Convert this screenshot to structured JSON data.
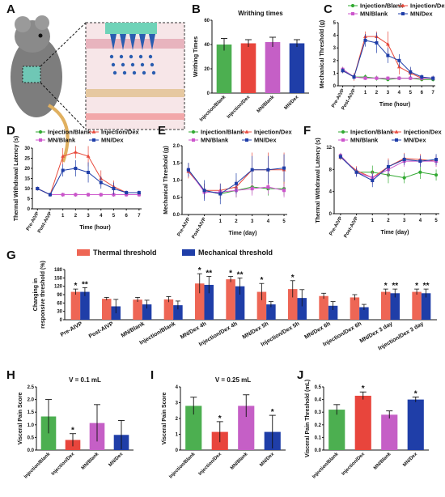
{
  "panel_letters": [
    "A",
    "B",
    "C",
    "D",
    "E",
    "F",
    "G",
    "H",
    "I",
    "J"
  ],
  "colors": {
    "green": "#4caf50",
    "red": "#e8453c",
    "pink": "#c55fc6",
    "blue": "#1f3ea8",
    "ginj_blank": "#33aa33",
    "ginj_dex": "#e84a3c",
    "gmn_blank": "#cc55cc",
    "gmn_dex": "#1f3ea8",
    "salmon": "#ee6655",
    "navy": "#1f3ea8"
  },
  "chart_data": [
    {
      "panel": "B",
      "type": "bar",
      "title": "Writhing times",
      "ylabel": "Writhing Times",
      "ylim": [
        0,
        60
      ],
      "yticks": [
        0,
        20,
        40,
        60
      ],
      "categories": [
        "Injection/Blank",
        "Injection/Dex",
        "MN/Blank",
        "MN/Dex"
      ],
      "values": [
        40,
        41,
        42,
        41
      ],
      "errors": [
        5,
        3,
        4,
        3
      ],
      "colors": [
        "#4caf50",
        "#e8453c",
        "#c55fc6",
        "#1f3ea8"
      ]
    },
    {
      "panel": "C",
      "type": "line",
      "xlabel": "Time (hour)",
      "ylabel": "Mechanical Threshold (g)",
      "ylim": [
        0,
        5
      ],
      "yticks": [
        0,
        1,
        2,
        3,
        4,
        5
      ],
      "x": [
        "Pre-AIVP",
        "Post-AIVP",
        "1",
        "2",
        "3",
        "4",
        "5",
        "6",
        "7"
      ],
      "series": [
        {
          "name": "Injection/Blank",
          "color": "#33aa33",
          "marker": "circle",
          "values": [
            1.3,
            0.7,
            0.7,
            0.6,
            0.5,
            0.6,
            0.6,
            0.5,
            0.5
          ],
          "errors": [
            0.2,
            0.2,
            0.2,
            0.2,
            0.15,
            0.15,
            0.15,
            0.15,
            0.15
          ]
        },
        {
          "name": "Injection/Dex",
          "color": "#e84a3c",
          "marker": "triangle",
          "values": [
            1.2,
            0.7,
            3.9,
            3.9,
            3.3,
            1.5,
            1.0,
            0.6,
            0.6
          ],
          "errors": [
            0.2,
            0.3,
            0.4,
            0.4,
            1.0,
            0.6,
            0.4,
            0.2,
            0.2
          ]
        },
        {
          "name": "MN/Blank",
          "color": "#cc55cc",
          "marker": "square",
          "values": [
            1.3,
            0.7,
            0.6,
            0.6,
            0.6,
            0.6,
            0.6,
            0.6,
            0.6
          ],
          "errors": [
            0.2,
            0.2,
            0.15,
            0.15,
            0.15,
            0.15,
            0.15,
            0.15,
            0.15
          ]
        },
        {
          "name": "MN/Dex",
          "color": "#1f3ea8",
          "marker": "square",
          "values": [
            1.2,
            0.7,
            3.6,
            3.4,
            2.4,
            2.0,
            1.1,
            0.7,
            0.6
          ],
          "errors": [
            0.2,
            0.2,
            0.5,
            0.8,
            0.6,
            0.5,
            0.4,
            0.2,
            0.2
          ]
        }
      ]
    },
    {
      "panel": "D",
      "type": "line",
      "xlabel": "Time (hour)",
      "ylabel": "Thermal Withdrawal Latency (s)",
      "ylim": [
        0,
        30
      ],
      "yticks": [
        0,
        5,
        10,
        15,
        20,
        25,
        30
      ],
      "x": [
        "Pre-AIVP",
        "Post-AIVP",
        "1",
        "2",
        "3",
        "4",
        "5",
        "6",
        "7"
      ],
      "series": [
        {
          "name": "Injection/Blank",
          "color": "#33aa33",
          "marker": "circle",
          "values": [
            10,
            7,
            7,
            7,
            7,
            7,
            7,
            7,
            7
          ],
          "errors": [
            1,
            1,
            1,
            1,
            1,
            1,
            1,
            1,
            1
          ]
        },
        {
          "name": "Injection/Dex",
          "color": "#e84a3c",
          "marker": "triangle",
          "values": [
            10,
            7,
            26,
            28,
            26,
            15,
            11,
            8,
            8
          ],
          "errors": [
            1,
            1,
            4,
            3,
            5,
            4,
            3,
            1,
            1
          ]
        },
        {
          "name": "MN/Blank",
          "color": "#cc55cc",
          "marker": "square",
          "values": [
            10,
            7,
            7,
            7,
            7,
            7,
            7,
            7,
            7
          ],
          "errors": [
            1,
            1,
            1,
            1,
            1,
            1,
            1,
            1,
            1
          ]
        },
        {
          "name": "MN/Dex",
          "color": "#1f3ea8",
          "marker": "square",
          "values": [
            10,
            7,
            19,
            20,
            18,
            13,
            10,
            8,
            8
          ],
          "errors": [
            1,
            1,
            3,
            4,
            5,
            3,
            3,
            1,
            1
          ]
        }
      ]
    },
    {
      "panel": "E",
      "type": "line",
      "xlabel": "Time (day)",
      "ylabel": "Mechanical Threshold (g)",
      "ylim": [
        0.0,
        2.0
      ],
      "yticks": [
        "0.0",
        "0.5",
        "1.0",
        "1.5",
        "2.0"
      ],
      "x": [
        "Pre-AIVP",
        "Post-AIVP",
        "1",
        "2",
        "3",
        "4",
        "5"
      ],
      "series": [
        {
          "name": "Injection/Blank",
          "color": "#33aa33",
          "marker": "circle",
          "values": [
            1.3,
            0.7,
            0.6,
            0.7,
            0.8,
            0.75,
            0.75
          ],
          "errors": [
            0.2,
            0.2,
            0.15,
            0.2,
            0.2,
            0.2,
            0.2
          ]
        },
        {
          "name": "Injection/Dex",
          "color": "#e84a3c",
          "marker": "triangle",
          "values": [
            1.25,
            0.7,
            0.7,
            0.8,
            1.3,
            1.3,
            1.3
          ],
          "errors": [
            0.2,
            0.2,
            0.2,
            0.2,
            0.5,
            0.5,
            0.5
          ]
        },
        {
          "name": "MN/Blank",
          "color": "#cc55cc",
          "marker": "square",
          "values": [
            1.3,
            0.65,
            0.65,
            0.7,
            0.75,
            0.8,
            0.7
          ],
          "errors": [
            0.2,
            0.2,
            0.2,
            0.2,
            0.2,
            0.2,
            0.2
          ]
        },
        {
          "name": "MN/Dex",
          "color": "#1f3ea8",
          "marker": "square",
          "values": [
            1.3,
            0.7,
            0.6,
            0.9,
            1.3,
            1.3,
            1.35
          ],
          "errors": [
            0.2,
            0.3,
            0.3,
            0.3,
            0.4,
            0.4,
            0.4
          ]
        }
      ]
    },
    {
      "panel": "F",
      "type": "line",
      "xlabel": "Time (day)",
      "ylabel": "Thermal Withdrawal Latency (s)",
      "ylim": [
        0,
        12
      ],
      "yticks": [
        0,
        4,
        8,
        12
      ],
      "x": [
        "Pre-AIVP",
        "Post-AIVP",
        "1",
        "2",
        "3",
        "4",
        "5"
      ],
      "series": [
        {
          "name": "Injection/Blank",
          "color": "#33aa33",
          "marker": "circle",
          "values": [
            10.5,
            7.5,
            7.5,
            7,
            6.5,
            7.5,
            7
          ],
          "errors": [
            0.5,
            0.8,
            1.2,
            1.5,
            1,
            1.2,
            1
          ]
        },
        {
          "name": "Injection/Dex",
          "color": "#e84a3c",
          "marker": "triangle",
          "values": [
            10.2,
            7.8,
            6.5,
            8.5,
            10,
            9.8,
            9.5
          ],
          "errors": [
            0.5,
            0.8,
            1.2,
            1.5,
            1,
            1,
            1
          ]
        },
        {
          "name": "MN/Blank",
          "color": "#cc55cc",
          "marker": "square",
          "values": [
            10.5,
            7.5,
            6.5,
            8,
            9.5,
            9.5,
            9.5
          ],
          "errors": [
            0.5,
            0.8,
            1,
            1.2,
            1,
            1,
            1
          ]
        },
        {
          "name": "MN/Dex",
          "color": "#1f3ea8",
          "marker": "square",
          "values": [
            10.3,
            7.5,
            6,
            8.5,
            9.8,
            9.5,
            9.8
          ],
          "errors": [
            0.5,
            0.8,
            1.2,
            1.2,
            1,
            1,
            1
          ]
        }
      ]
    },
    {
      "panel": "G",
      "type": "bar",
      "ylabel": "Changing in responsive threshold (%)",
      "ylim": [
        0,
        180
      ],
      "yticks": [
        0,
        30,
        60,
        90,
        120,
        150,
        180
      ],
      "categories": [
        "Pre-AIVP",
        "Post-AIVP",
        "MN/Blank",
        "Injection/Blank",
        "MN/Dex 4h",
        "Injection/Dex 4h",
        "MN/Dex 5h",
        "Injection/Dex 5h",
        "MN/Dex 6h",
        "Injection/Dex 6h",
        "MN/Dex 3 day",
        "Injection/Dex 3 day"
      ],
      "series": [
        {
          "name": "Thermal threshold",
          "color": "#ee6655",
          "values": [
            100,
            75,
            72,
            73,
            130,
            145,
            100,
            110,
            85,
            80,
            100,
            100
          ],
          "errors": [
            10,
            5,
            8,
            10,
            35,
            10,
            30,
            30,
            10,
            10,
            10,
            10
          ],
          "stars": [
            "*",
            "",
            "",
            "",
            "*",
            "*",
            "*",
            "*",
            "",
            "",
            "*",
            "*"
          ]
        },
        {
          "name": "Mechanical threshold",
          "color": "#1f3ea8",
          "values": [
            100,
            48,
            55,
            52,
            125,
            120,
            55,
            78,
            50,
            45,
            95,
            95
          ],
          "errors": [
            15,
            25,
            15,
            15,
            30,
            30,
            10,
            30,
            15,
            10,
            15,
            15
          ],
          "stars": [
            "**",
            "",
            "",
            "",
            "**",
            "**",
            "",
            "",
            "",
            "",
            "**",
            "**"
          ]
        }
      ]
    },
    {
      "panel": "H",
      "type": "bar",
      "title": "V = 0.1 mL",
      "ylabel": "Visceral Pain Score",
      "ylim": [
        0,
        2.5
      ],
      "yticks": [
        "0.0",
        "0.5",
        "1.0",
        "1.5",
        "2.0",
        "2.5"
      ],
      "categories": [
        "Injection/Blank",
        "Injection/Dex",
        "MN/Blank",
        "MN/Dex"
      ],
      "values": [
        1.33,
        0.4,
        1.07,
        0.6
      ],
      "errors": [
        0.67,
        0.25,
        0.73,
        0.57
      ],
      "colors": [
        "#4caf50",
        "#e8453c",
        "#c55fc6",
        "#1f3ea8"
      ],
      "stars": [
        "",
        "*",
        "",
        ""
      ]
    },
    {
      "panel": "I",
      "type": "bar",
      "title": "V = 0.25 mL",
      "ylabel": "Visceral Pain Score",
      "ylim": [
        0,
        4
      ],
      "yticks": [
        0,
        1,
        2,
        3,
        4
      ],
      "categories": [
        "Injection/Blank",
        "Injection/Dex",
        "MN/Blank",
        "MN/Dex"
      ],
      "values": [
        2.8,
        1.15,
        2.8,
        1.15
      ],
      "errors": [
        0.55,
        0.65,
        0.7,
        1.05
      ],
      "colors": [
        "#4caf50",
        "#e8453c",
        "#c55fc6",
        "#1f3ea8"
      ],
      "stars": [
        "",
        "*",
        "",
        "*"
      ]
    },
    {
      "panel": "J",
      "type": "bar",
      "ylabel": "Visceral Pain Threshold (mL)",
      "ylim": [
        0,
        0.5
      ],
      "yticks": [
        "0.0",
        "0.1",
        "0.2",
        "0.3",
        "0.4",
        "0.5"
      ],
      "categories": [
        "Injection/Blank",
        "Injection/Dex",
        "MN/Blank",
        "MN/Dex"
      ],
      "values": [
        0.32,
        0.43,
        0.28,
        0.4
      ],
      "errors": [
        0.04,
        0.03,
        0.03,
        0.02
      ],
      "colors": [
        "#4caf50",
        "#e8453c",
        "#c55fc6",
        "#1f3ea8"
      ],
      "stars": [
        "",
        "*",
        "",
        "*"
      ]
    }
  ]
}
